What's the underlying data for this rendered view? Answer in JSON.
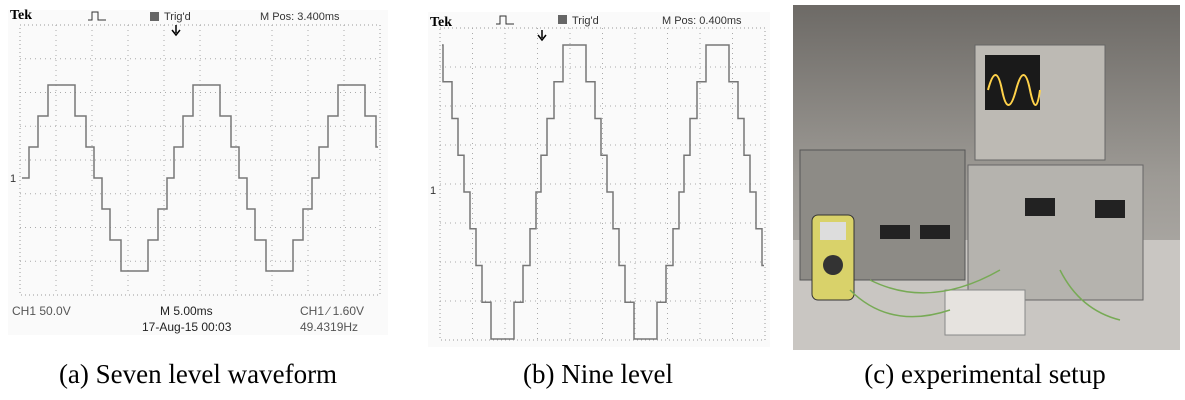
{
  "panels": [
    {
      "scope": {
        "brand": "Tek",
        "trigger": "Trig'd",
        "position": "M Pos: 3.400ms",
        "channel_marker": "1",
        "channel": "CH1  50.0V",
        "timebase": "M 5.00ms",
        "date": "17-Aug-15 00:03",
        "trigger_level": "CH1 ∕ 1.60V",
        "frequency": "49.4319Hz"
      },
      "caption": "(a) Seven level waveform"
    },
    {
      "scope": {
        "brand": "Tek",
        "trigger": "Trig'd",
        "position": "M Pos: 0.400ms",
        "channel_marker": "1"
      },
      "caption": "(b)  Nine level"
    },
    {
      "caption": "(c) experimental setup"
    }
  ]
}
